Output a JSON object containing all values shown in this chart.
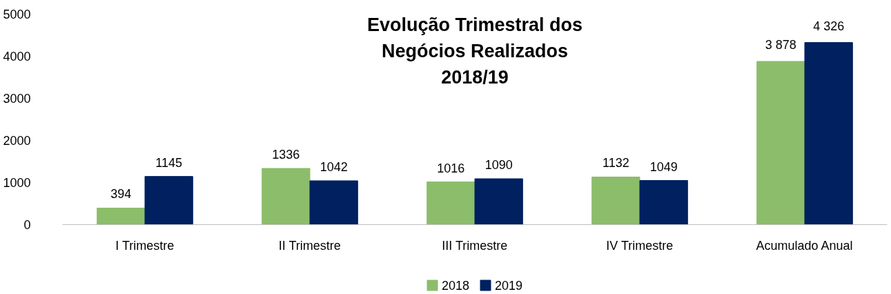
{
  "chart_data": {
    "type": "bar",
    "title": "Evolução Trimestral dos\nNegócios Realizados\n2018/19",
    "categories": [
      "I Trimestre",
      "II Trimestre",
      "III Trimestre",
      "IV Trimestre",
      "Acumulado Anual"
    ],
    "series": [
      {
        "name": "2018",
        "color": "#8cbd6b",
        "values": [
          394,
          1336,
          1016,
          1132,
          3878
        ],
        "value_labels": [
          "394",
          "1336",
          "1016",
          "1132",
          "3 878"
        ]
      },
      {
        "name": "2019",
        "color": "#002060",
        "values": [
          1145,
          1042,
          1090,
          1049,
          4326
        ],
        "value_labels": [
          "1145",
          "1042",
          "1090",
          "1049",
          "4 326"
        ]
      }
    ],
    "ylim": [
      0,
      5000
    ],
    "yticks": [
      0,
      1000,
      2000,
      3000,
      4000,
      5000
    ],
    "legend": "bottom",
    "grid": false
  }
}
